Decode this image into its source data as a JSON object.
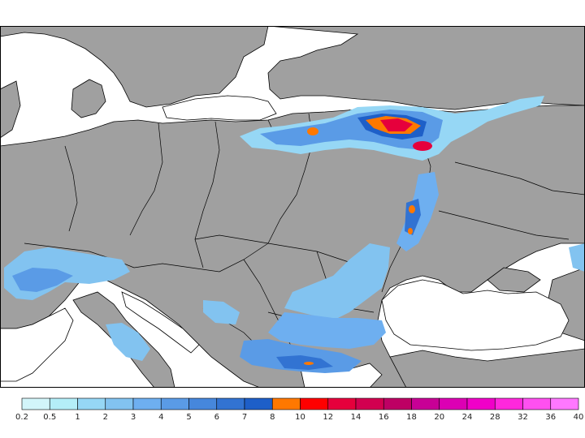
{
  "map": {
    "land_color": "#a0a0a0",
    "water_color": "#ffffff",
    "border_color": "#000000"
  },
  "legend": {
    "labels": [
      "0.2",
      "0.5",
      "1",
      "2",
      "3",
      "4",
      "5",
      "6",
      "7",
      "8",
      "10",
      "12",
      "14",
      "16",
      "18",
      "20",
      "24",
      "28",
      "32",
      "36",
      "40"
    ],
    "colors": [
      "#d2f5fa",
      "#b4eef8",
      "#96d7f5",
      "#82c3f0",
      "#6eaff0",
      "#5a9be6",
      "#4687dc",
      "#3273d2",
      "#1e5fc8",
      "#ff7800",
      "#ff0000",
      "#e6003c",
      "#d20050",
      "#be0064",
      "#c80096",
      "#dc00b4",
      "#f000c8",
      "#ff28dc",
      "#ff50f0",
      "#ff78ff"
    ]
  }
}
